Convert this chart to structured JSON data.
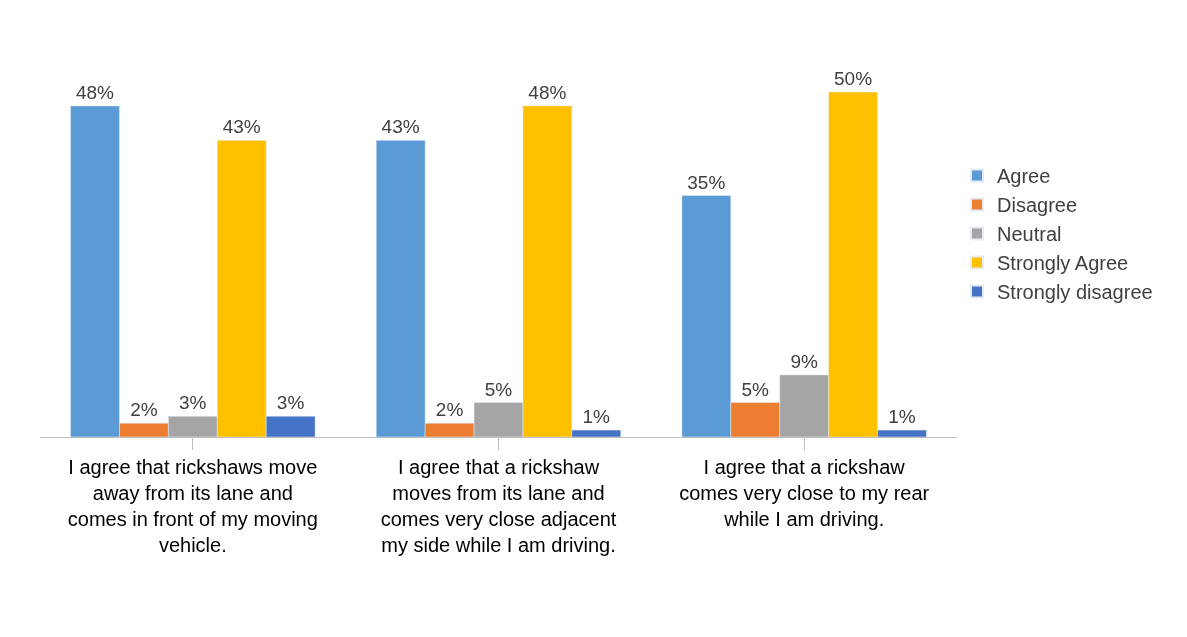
{
  "chart_data": {
    "type": "bar",
    "categories": [
      "I agree that rickshaws move away from its lane and comes in front of my moving vehicle.",
      "I agree that a rickshaw moves from its lane and comes very close adjacent my side while I am driving.",
      "I agree that a rickshaw comes very close to my rear while I am driving."
    ],
    "series": [
      {
        "name": "Agree",
        "color": "#5b9bd5",
        "values": [
          48,
          43,
          35
        ],
        "value_labels": [
          "48%",
          "43%",
          "35%"
        ]
      },
      {
        "name": "Disagree",
        "color": "#ed7d31",
        "values": [
          2,
          2,
          5
        ],
        "value_labels": [
          "2%",
          "2%",
          "5%"
        ]
      },
      {
        "name": "Neutral",
        "color": "#a5a5a5",
        "values": [
          3,
          5,
          9
        ],
        "value_labels": [
          "3%",
          "5%",
          "9%"
        ]
      },
      {
        "name": "Strongly Agree",
        "color": "#ffc000",
        "values": [
          43,
          48,
          50
        ],
        "value_labels": [
          "43%",
          "48%",
          "50%"
        ]
      },
      {
        "name": "Strongly disagree",
        "color": "#4472c4",
        "values": [
          3,
          1,
          1
        ],
        "value_labels": [
          "3%",
          "1%",
          "1%"
        ]
      }
    ],
    "legend": "right"
  }
}
